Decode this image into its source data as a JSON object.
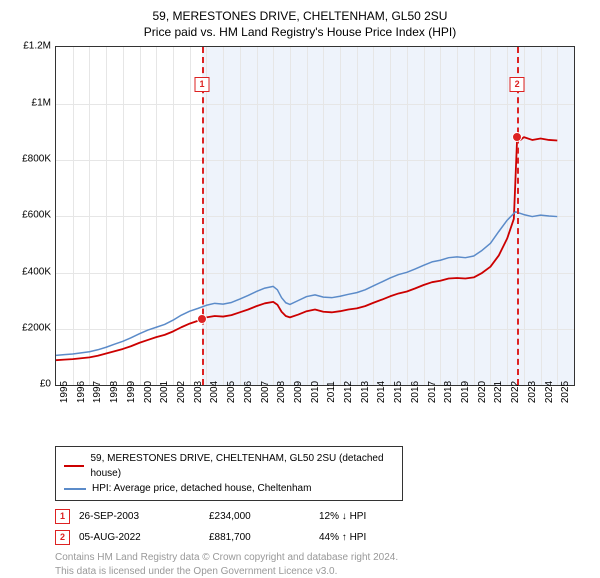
{
  "title": {
    "line1": "59, MERESTONES DRIVE, CHELTENHAM, GL50 2SU",
    "line2": "Price paid vs. HM Land Registry's House Price Index (HPI)"
  },
  "chart": {
    "type": "line",
    "background_color": "#ffffff",
    "grid_color": "#e6e6e6",
    "border_color": "#333333",
    "y": {
      "min": 0,
      "max": 1200000,
      "ticks": [
        0,
        200000,
        400000,
        600000,
        800000,
        1000000,
        1200000
      ],
      "tick_labels": [
        "£0",
        "£200K",
        "£400K",
        "£600K",
        "£800K",
        "£1M",
        "£1.2M"
      ],
      "label_fontsize": 10
    },
    "x": {
      "min": 1995,
      "max": 2026,
      "tick_years": [
        1995,
        1996,
        1997,
        1998,
        1999,
        2000,
        2001,
        2002,
        2003,
        2004,
        2005,
        2006,
        2007,
        2008,
        2009,
        2010,
        2011,
        2012,
        2013,
        2014,
        2015,
        2016,
        2017,
        2018,
        2019,
        2020,
        2021,
        2022,
        2023,
        2024,
        2025
      ],
      "label_fontsize": 10
    },
    "shaded_region": {
      "start_year": 2003.74,
      "end_year": 2026,
      "color": "#eef3fb"
    },
    "series": [
      {
        "name": "price_paid",
        "label": "59, MERESTONES DRIVE, CHELTENHAM, GL50 2SU (detached house)",
        "color": "#cc0000",
        "line_width": 1.8,
        "points": [
          [
            1995.0,
            88000
          ],
          [
            1995.5,
            90000
          ],
          [
            1996.0,
            92000
          ],
          [
            1996.5,
            95000
          ],
          [
            1997.0,
            98000
          ],
          [
            1997.5,
            104000
          ],
          [
            1998.0,
            112000
          ],
          [
            1998.5,
            120000
          ],
          [
            1999.0,
            128000
          ],
          [
            1999.5,
            138000
          ],
          [
            2000.0,
            150000
          ],
          [
            2000.5,
            160000
          ],
          [
            2001.0,
            170000
          ],
          [
            2001.5,
            178000
          ],
          [
            2002.0,
            190000
          ],
          [
            2002.5,
            205000
          ],
          [
            2003.0,
            218000
          ],
          [
            2003.5,
            228000
          ],
          [
            2003.74,
            234000
          ],
          [
            2004.0,
            240000
          ],
          [
            2004.5,
            245000
          ],
          [
            2005.0,
            243000
          ],
          [
            2005.5,
            248000
          ],
          [
            2006.0,
            258000
          ],
          [
            2006.5,
            268000
          ],
          [
            2007.0,
            280000
          ],
          [
            2007.5,
            290000
          ],
          [
            2008.0,
            295000
          ],
          [
            2008.25,
            285000
          ],
          [
            2008.5,
            260000
          ],
          [
            2008.75,
            245000
          ],
          [
            2009.0,
            240000
          ],
          [
            2009.5,
            250000
          ],
          [
            2010.0,
            262000
          ],
          [
            2010.5,
            268000
          ],
          [
            2011.0,
            260000
          ],
          [
            2011.5,
            258000
          ],
          [
            2012.0,
            262000
          ],
          [
            2012.5,
            268000
          ],
          [
            2013.0,
            272000
          ],
          [
            2013.5,
            280000
          ],
          [
            2014.0,
            292000
          ],
          [
            2014.5,
            303000
          ],
          [
            2015.0,
            315000
          ],
          [
            2015.5,
            325000
          ],
          [
            2016.0,
            332000
          ],
          [
            2016.5,
            343000
          ],
          [
            2017.0,
            355000
          ],
          [
            2017.5,
            365000
          ],
          [
            2018.0,
            370000
          ],
          [
            2018.5,
            378000
          ],
          [
            2019.0,
            380000
          ],
          [
            2019.5,
            378000
          ],
          [
            2020.0,
            382000
          ],
          [
            2020.5,
            398000
          ],
          [
            2021.0,
            420000
          ],
          [
            2021.5,
            460000
          ],
          [
            2022.0,
            520000
          ],
          [
            2022.4,
            590000
          ],
          [
            2022.6,
            881700
          ],
          [
            2022.8,
            870000
          ],
          [
            2023.0,
            880000
          ],
          [
            2023.5,
            870000
          ],
          [
            2024.0,
            875000
          ],
          [
            2024.5,
            870000
          ],
          [
            2025.0,
            868000
          ]
        ]
      },
      {
        "name": "hpi",
        "label": "HPI: Average price, detached house, Cheltenham",
        "color": "#5b8bc9",
        "line_width": 1.5,
        "points": [
          [
            1995.0,
            105000
          ],
          [
            1995.5,
            108000
          ],
          [
            1996.0,
            110000
          ],
          [
            1996.5,
            114000
          ],
          [
            1997.0,
            118000
          ],
          [
            1997.5,
            125000
          ],
          [
            1998.0,
            134000
          ],
          [
            1998.5,
            145000
          ],
          [
            1999.0,
            155000
          ],
          [
            1999.5,
            168000
          ],
          [
            2000.0,
            182000
          ],
          [
            2000.5,
            195000
          ],
          [
            2001.0,
            205000
          ],
          [
            2001.5,
            215000
          ],
          [
            2002.0,
            230000
          ],
          [
            2002.5,
            248000
          ],
          [
            2003.0,
            262000
          ],
          [
            2003.5,
            272000
          ],
          [
            2004.0,
            283000
          ],
          [
            2004.5,
            290000
          ],
          [
            2005.0,
            287000
          ],
          [
            2005.5,
            293000
          ],
          [
            2006.0,
            305000
          ],
          [
            2006.5,
            318000
          ],
          [
            2007.0,
            332000
          ],
          [
            2007.5,
            344000
          ],
          [
            2008.0,
            350000
          ],
          [
            2008.25,
            338000
          ],
          [
            2008.5,
            310000
          ],
          [
            2008.75,
            292000
          ],
          [
            2009.0,
            286000
          ],
          [
            2009.5,
            300000
          ],
          [
            2010.0,
            314000
          ],
          [
            2010.5,
            320000
          ],
          [
            2011.0,
            312000
          ],
          [
            2011.5,
            310000
          ],
          [
            2012.0,
            315000
          ],
          [
            2012.5,
            322000
          ],
          [
            2013.0,
            328000
          ],
          [
            2013.5,
            338000
          ],
          [
            2014.0,
            352000
          ],
          [
            2014.5,
            366000
          ],
          [
            2015.0,
            380000
          ],
          [
            2015.5,
            392000
          ],
          [
            2016.0,
            400000
          ],
          [
            2016.5,
            412000
          ],
          [
            2017.0,
            425000
          ],
          [
            2017.5,
            437000
          ],
          [
            2018.0,
            443000
          ],
          [
            2018.5,
            452000
          ],
          [
            2019.0,
            455000
          ],
          [
            2019.5,
            452000
          ],
          [
            2020.0,
            458000
          ],
          [
            2020.5,
            478000
          ],
          [
            2021.0,
            503000
          ],
          [
            2021.5,
            545000
          ],
          [
            2022.0,
            585000
          ],
          [
            2022.5,
            615000
          ],
          [
            2023.0,
            605000
          ],
          [
            2023.5,
            598000
          ],
          [
            2024.0,
            603000
          ],
          [
            2024.5,
            600000
          ],
          [
            2025.0,
            598000
          ]
        ]
      }
    ],
    "sale_markers": [
      {
        "n": 1,
        "year": 2003.74,
        "value": 234000
      },
      {
        "n": 2,
        "year": 2022.6,
        "value": 881700
      }
    ]
  },
  "legend": {
    "items": [
      {
        "color": "#cc0000",
        "label": "59, MERESTONES DRIVE, CHELTENHAM, GL50 2SU (detached house)"
      },
      {
        "color": "#5b8bc9",
        "label": "HPI: Average price, detached house, Cheltenham"
      }
    ]
  },
  "sales": [
    {
      "n": "1",
      "date": "26-SEP-2003",
      "price": "£234,000",
      "delta": "12% ↓ HPI"
    },
    {
      "n": "2",
      "date": "05-AUG-2022",
      "price": "£881,700",
      "delta": "44% ↑ HPI"
    }
  ],
  "footer": {
    "line1": "Contains HM Land Registry data © Crown copyright and database right 2024.",
    "line2": "This data is licensed under the Open Government Licence v3.0."
  }
}
